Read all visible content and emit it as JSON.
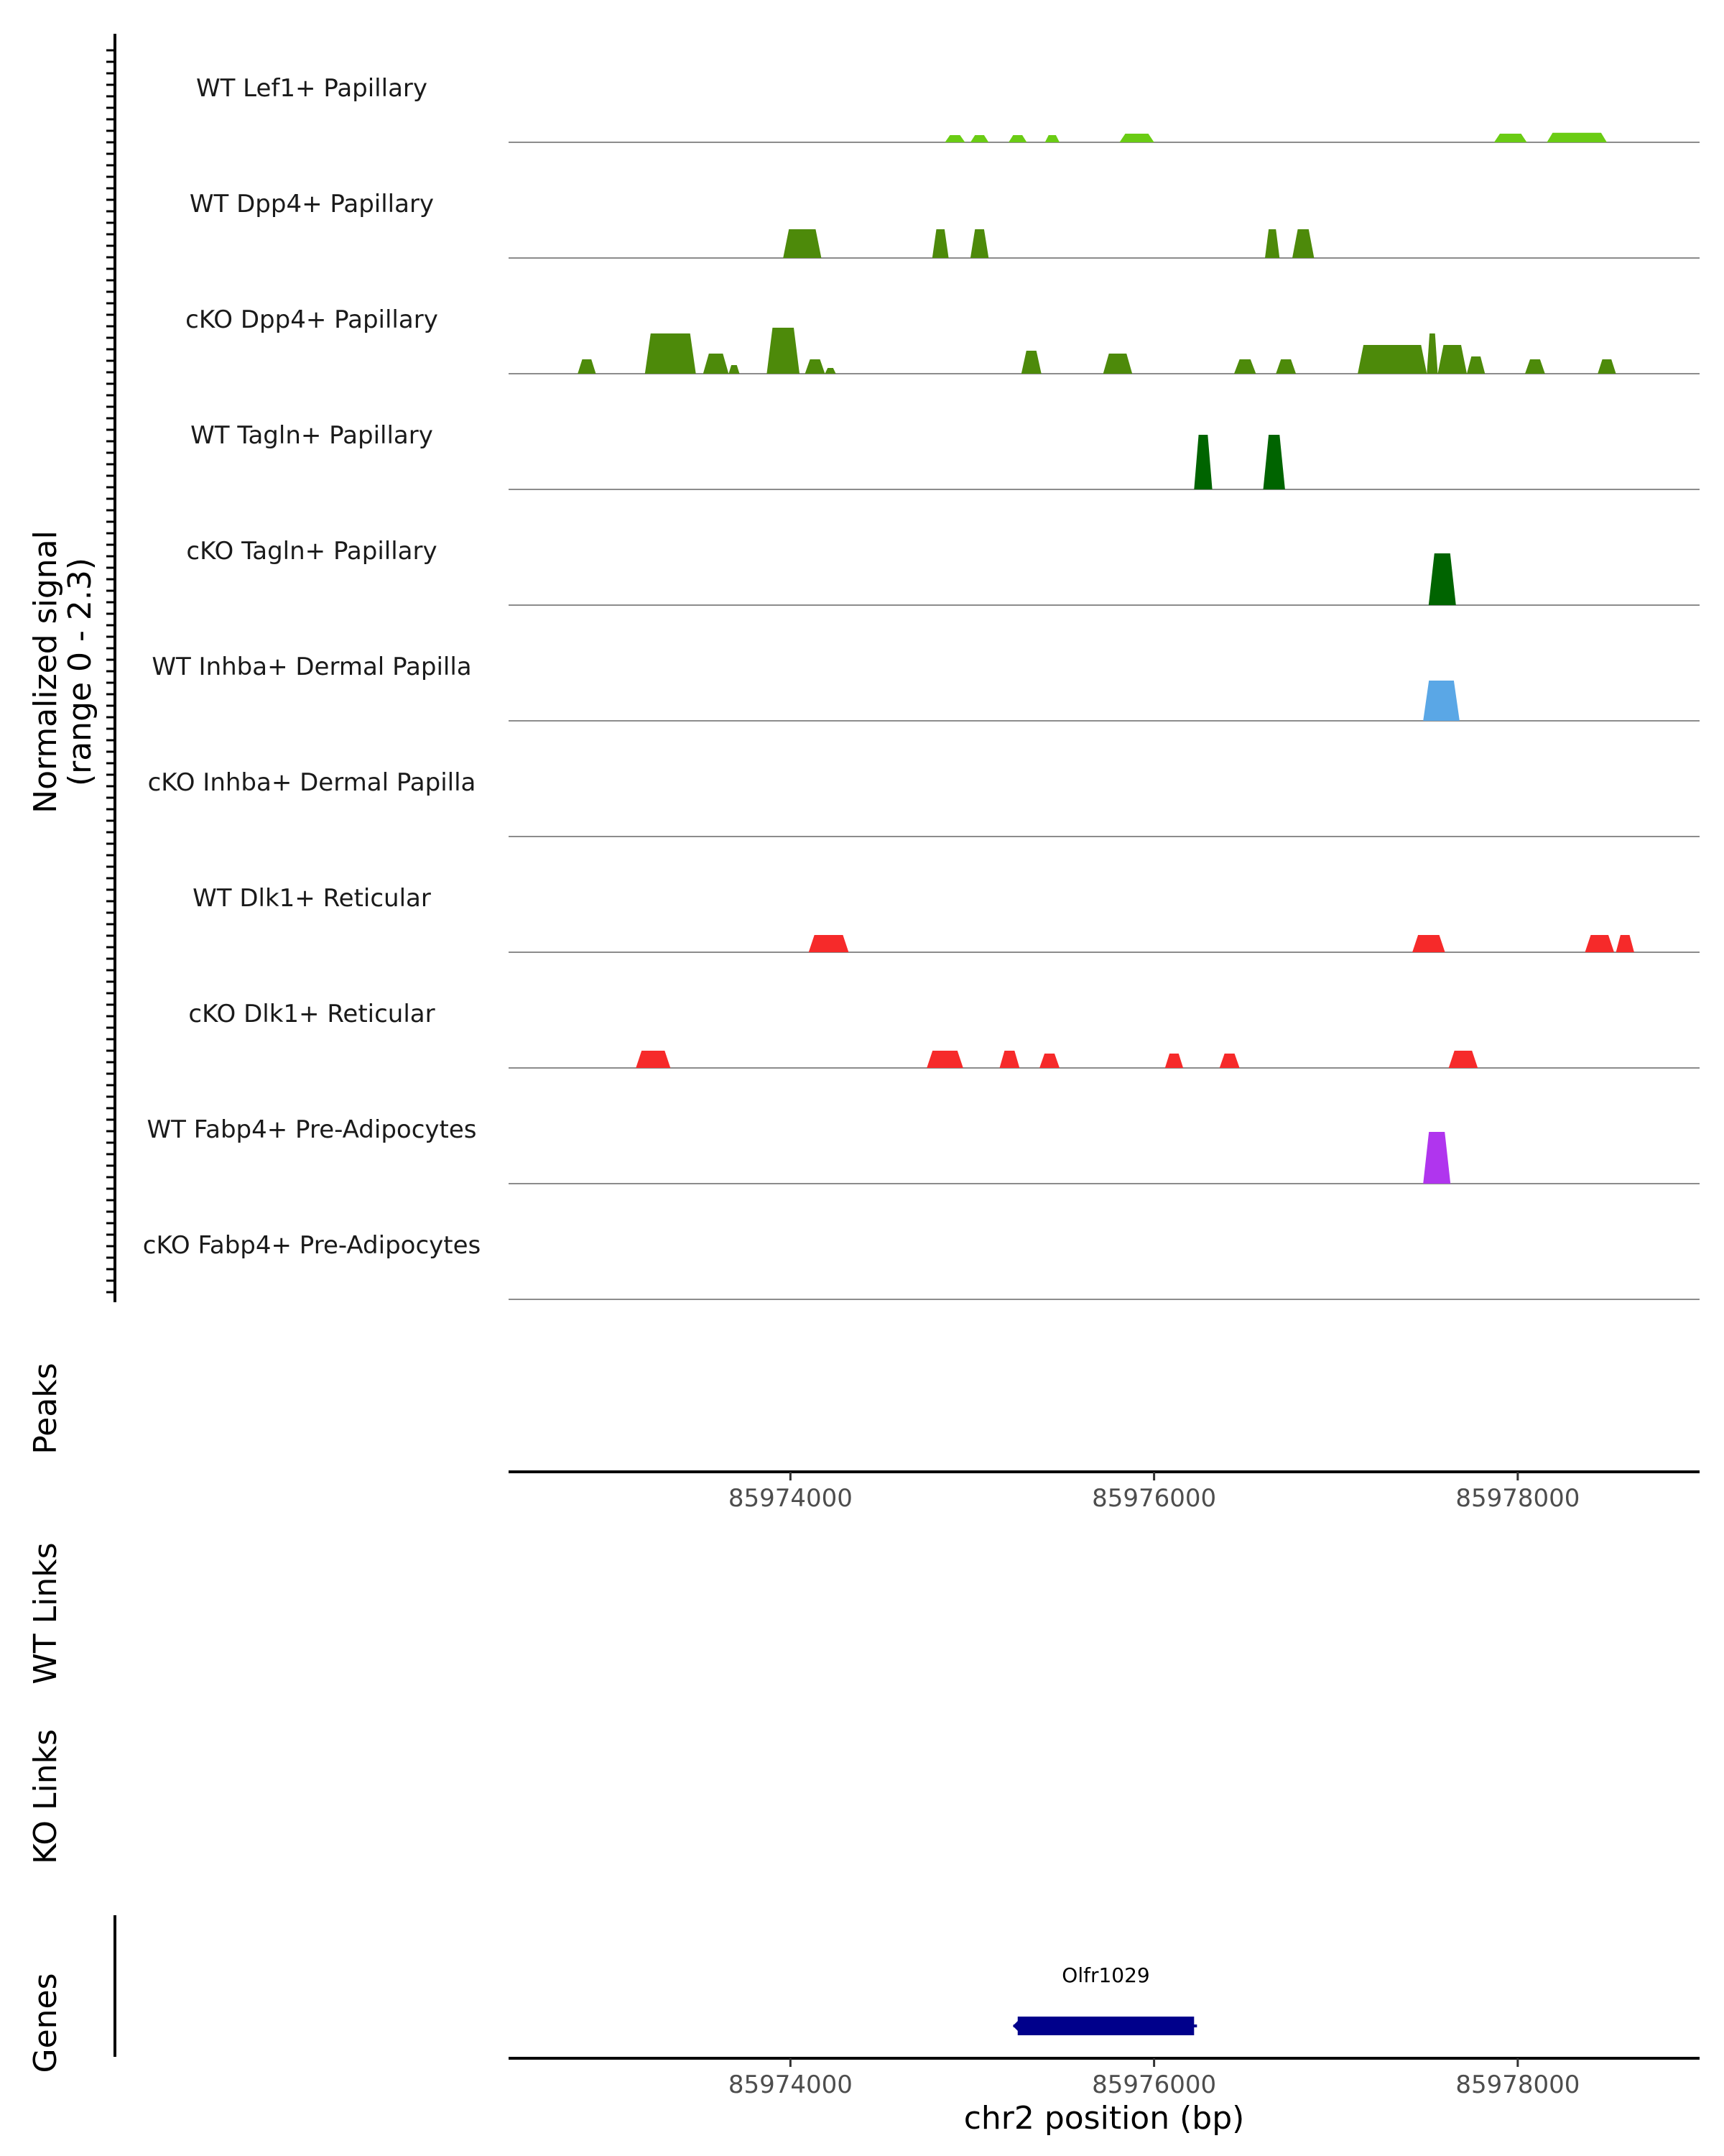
{
  "chart_data": {
    "type": "area",
    "chromosome": "chr2",
    "x_range": [
      85972450,
      85979000
    ],
    "x_ticks": [
      85974000,
      85976000,
      85978000
    ],
    "x_tick_labels": [
      "85974000",
      "85976000",
      "85978000"
    ],
    "xlabel": "chr2 position (bp)",
    "signal_axis_title_line1": "Normalized signal",
    "signal_axis_title_line2": "(range 0 - 2.3)",
    "y_range": [
      0,
      2.3
    ],
    "panel_titles": {
      "peaks": "Peaks",
      "wt_links": "WT Links",
      "ko_links": "KO Links",
      "genes": "Genes"
    },
    "series": [
      {
        "name": "WT Lef1+ Papillary",
        "color": "#6ACC14",
        "peaks": [
          [
            85974850,
            85974960,
            0.25
          ],
          [
            85974990,
            85975090,
            0.25
          ],
          [
            85975200,
            85975300,
            0.25
          ],
          [
            85975400,
            85975480,
            0.25
          ],
          [
            85975810,
            85976000,
            0.3
          ],
          [
            85977870,
            85978050,
            0.3
          ],
          [
            85978160,
            85978490,
            0.33
          ]
        ]
      },
      {
        "name": "WT Dpp4+ Papillary",
        "color": "#4D8A0A",
        "peaks": [
          [
            85973960,
            85974170,
            1.0
          ],
          [
            85974780,
            85974870,
            1.0
          ],
          [
            85974990,
            85975090,
            1.0
          ],
          [
            85976610,
            85976690,
            1.0
          ],
          [
            85976760,
            85976880,
            1.0
          ]
        ]
      },
      {
        "name": "cKO Dpp4+ Papillary",
        "color": "#4D8A0A",
        "peaks": [
          [
            85972830,
            85972930,
            0.5
          ],
          [
            85973200,
            85973480,
            1.4
          ],
          [
            85973520,
            85973660,
            0.7
          ],
          [
            85973660,
            85973720,
            0.3
          ],
          [
            85973870,
            85974050,
            1.6
          ],
          [
            85974080,
            85974190,
            0.5
          ],
          [
            85974190,
            85974250,
            0.2
          ],
          [
            85975270,
            85975380,
            0.8
          ],
          [
            85975720,
            85975880,
            0.7
          ],
          [
            85976440,
            85976560,
            0.5
          ],
          [
            85976670,
            85976780,
            0.5
          ],
          [
            85977120,
            85977500,
            1.0
          ],
          [
            85977500,
            85977560,
            1.4
          ],
          [
            85977560,
            85977720,
            1.0
          ],
          [
            85977720,
            85977820,
            0.6
          ],
          [
            85978040,
            85978150,
            0.5
          ],
          [
            85978440,
            85978540,
            0.5
          ]
        ]
      },
      {
        "name": "WT Tagln+ Papillary",
        "color": "#006400",
        "peaks": [
          [
            85976220,
            85976320,
            1.9
          ],
          [
            85976600,
            85976720,
            1.9
          ]
        ]
      },
      {
        "name": "cKO Tagln+ Papillary",
        "color": "#006400",
        "peaks": [
          [
            85977510,
            85977660,
            1.8
          ]
        ]
      },
      {
        "name": "WT Inhba+ Dermal Papilla",
        "color": "#5AA7E6",
        "peaks": [
          [
            85977480,
            85977680,
            1.4
          ]
        ]
      },
      {
        "name": "cKO Inhba+ Dermal Papilla",
        "color": "#5AA7E6",
        "peaks": []
      },
      {
        "name": "WT Dlk1+ Reticular",
        "color": "#F62A2A",
        "peaks": [
          [
            85974100,
            85974320,
            0.6
          ],
          [
            85977420,
            85977600,
            0.6
          ],
          [
            85978370,
            85978530,
            0.6
          ],
          [
            85978540,
            85978640,
            0.6
          ]
        ]
      },
      {
        "name": "cKO Dlk1+ Reticular",
        "color": "#F62A2A",
        "peaks": [
          [
            85973150,
            85973340,
            0.6
          ],
          [
            85974750,
            85974950,
            0.6
          ],
          [
            85975150,
            85975260,
            0.6
          ],
          [
            85975370,
            85975480,
            0.5
          ],
          [
            85976060,
            85976160,
            0.5
          ],
          [
            85976360,
            85976470,
            0.5
          ],
          [
            85977620,
            85977780,
            0.6
          ]
        ]
      },
      {
        "name": "WT Fabp4+ Pre-Adipocytes",
        "color": "#B035EE",
        "peaks": [
          [
            85977480,
            85977630,
            1.8
          ]
        ]
      },
      {
        "name": "cKO Fabp4+ Pre-Adipocytes",
        "color": "#B035EE",
        "peaks": []
      }
    ],
    "genes": [
      {
        "name": "Olfr1029",
        "start": 85975250,
        "end": 85976220,
        "strand": "-",
        "color": "#00008B"
      }
    ]
  }
}
